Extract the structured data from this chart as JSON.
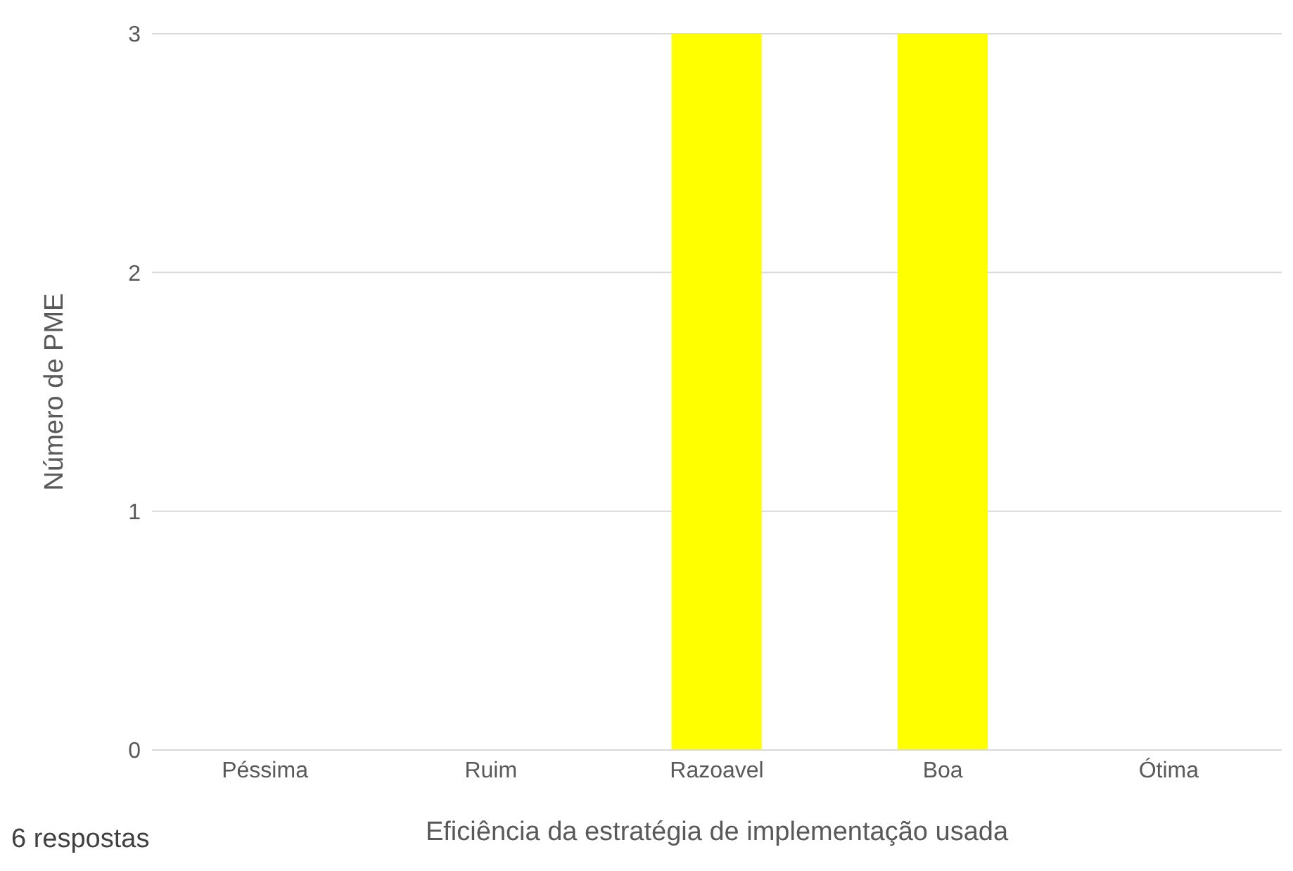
{
  "chart_data": {
    "type": "bar",
    "xlabel": "Eficiência da estratégia de implementação usada",
    "ylabel": "Número de PME",
    "categories": [
      "Péssima",
      "Ruim",
      "Razoavel",
      "Boa",
      "Ótima"
    ],
    "values": [
      0,
      0,
      3,
      3,
      0
    ],
    "color": "#ffff00",
    "ylim": [
      0,
      3
    ],
    "yticks": [
      0,
      1,
      2,
      3
    ],
    "grid": "y",
    "annotations": [
      "6 respostas"
    ]
  }
}
